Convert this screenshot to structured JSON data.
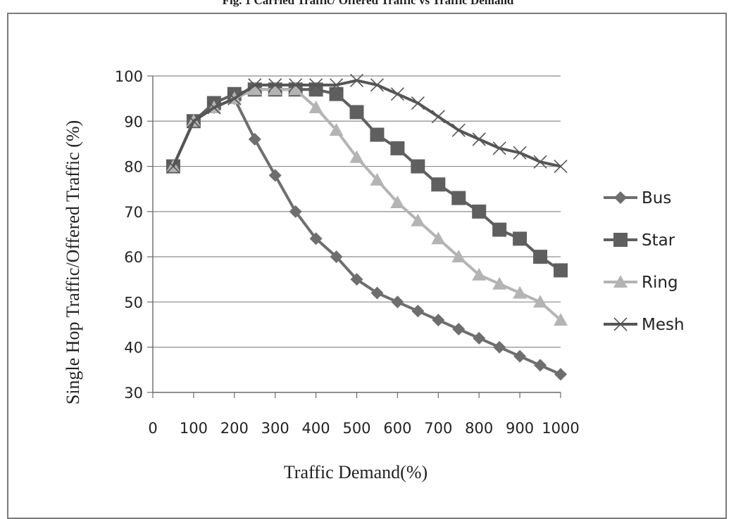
{
  "figure": {
    "title": "Fig. 1 Carried Traffic/ Offered Traffic vs Traffic Demand"
  },
  "chart_data": {
    "type": "line",
    "title": "",
    "xlabel": "Traffic Demand(%)",
    "ylabel": "Single Hop Traffic/Offered Traffic (%)",
    "xlim": [
      0,
      1000
    ],
    "ylim": [
      30,
      100
    ],
    "xticks": [
      0,
      100,
      200,
      300,
      400,
      500,
      600,
      700,
      800,
      900,
      1000
    ],
    "xtick_labels": [
      "0",
      "100",
      "200",
      "300",
      "400",
      "500",
      "600",
      "700",
      "800",
      "900",
      "1000"
    ],
    "yticks": [
      30,
      40,
      50,
      60,
      70,
      80,
      90,
      100
    ],
    "ytick_labels": [
      "30",
      "40",
      "50",
      "60",
      "70",
      "80",
      "90",
      "100"
    ],
    "grid": "horizontal",
    "legend_position": "right",
    "x": [
      50,
      100,
      150,
      200,
      250,
      300,
      350,
      400,
      450,
      500,
      550,
      600,
      650,
      700,
      750,
      800,
      850,
      900,
      950,
      1000
    ],
    "series": [
      {
        "name": "Bus",
        "marker": "diamond",
        "color": "#6e6e6e",
        "values": [
          80,
          90,
          93,
          95,
          86,
          78,
          70,
          64,
          60,
          55,
          52,
          50,
          48,
          46,
          44,
          42,
          40,
          38,
          36,
          34
        ]
      },
      {
        "name": "Star",
        "marker": "square",
        "color": "#5f5f5f",
        "values": [
          80,
          90,
          94,
          96,
          97,
          97,
          97,
          97,
          96,
          92,
          87,
          84,
          80,
          76,
          73,
          70,
          66,
          64,
          60,
          57
        ]
      },
      {
        "name": "Ring",
        "marker": "triangle",
        "color": "#b4b4b4",
        "values": [
          80,
          90,
          93,
          95,
          97,
          97,
          97,
          93,
          88,
          82,
          77,
          72,
          68,
          64,
          60,
          56,
          54,
          52,
          50,
          46
        ]
      },
      {
        "name": "Mesh",
        "marker": "x",
        "color": "#555555",
        "values": [
          80,
          90,
          93,
          95,
          98,
          98,
          98,
          98,
          98,
          99,
          98,
          96,
          94,
          91,
          88,
          86,
          84,
          83,
          81,
          80
        ]
      }
    ]
  }
}
